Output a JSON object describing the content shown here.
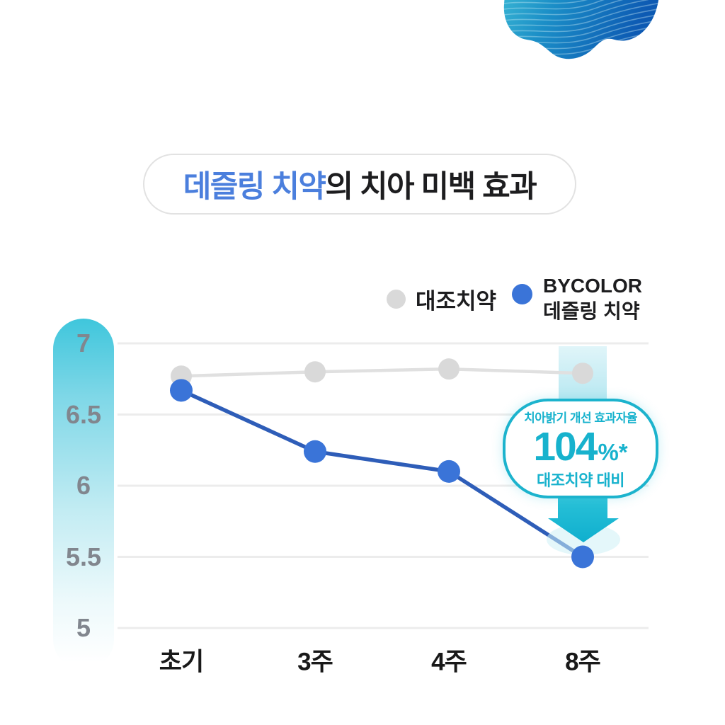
{
  "title": {
    "highlight": "데즐링 치약",
    "rest": "의 치아 미백 효과"
  },
  "legend": {
    "control": {
      "label": "대조치약",
      "color": "#d9d9d9"
    },
    "brand": {
      "line1": "BYCOLOR",
      "line2": "데즐링 치약",
      "color": "#3a74d8"
    }
  },
  "callout": {
    "headline": "치아밝기 개선 효과자율",
    "value": "104",
    "suffix": "%*",
    "footnote": "대조치약 대비",
    "accent_color": "#17b2cd"
  },
  "chart_data": {
    "type": "line",
    "title": "데즐링 치약의 치아 미백 효과",
    "categories": [
      "초기",
      "3주",
      "4주",
      "8주"
    ],
    "series": [
      {
        "name": "대조치약",
        "marker_color": "#d9d9d9",
        "line_color": "#e0e0e0",
        "values": [
          6.77,
          6.8,
          6.82,
          6.79
        ]
      },
      {
        "name": "BYCOLOR 데즐링 치약",
        "marker_color": "#3a74d8",
        "line_color": "#2e5db8",
        "values": [
          6.67,
          6.24,
          6.1,
          5.5
        ]
      }
    ],
    "yticks": [
      7,
      6.5,
      6,
      5.5,
      5
    ],
    "ylim": [
      5,
      7
    ],
    "xlabel": "",
    "ylabel": "",
    "grid": true,
    "legend_position": "top-right",
    "annotation_target": {
      "category": "8주",
      "series": "BYCOLOR 데즐링 치약"
    }
  },
  "colors": {
    "accent_teal": "#17b2cd",
    "arrow_teal": "#14b6d2",
    "band_cyan": "#bfe9f2",
    "title_blue": "#4b7fdd",
    "text_dark": "#1d1d1f",
    "tick_gray": "#81868e",
    "grid_gray": "#ececec"
  }
}
